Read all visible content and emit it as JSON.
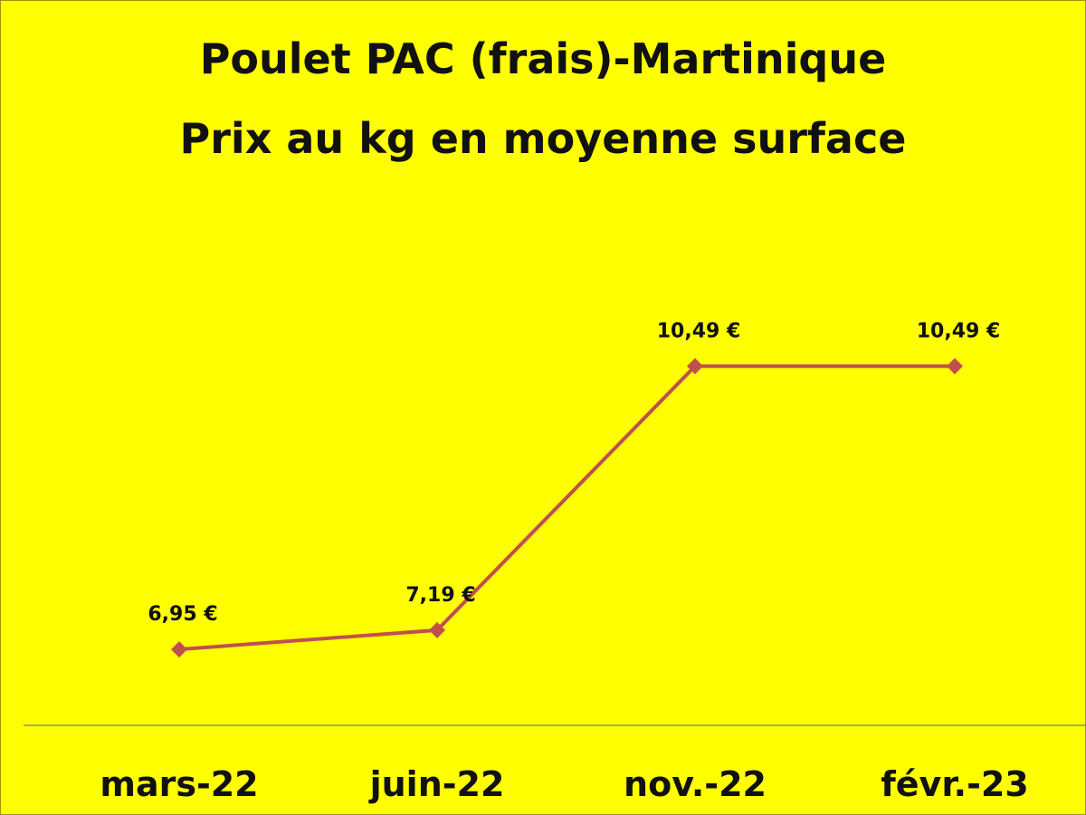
{
  "chart_data": {
    "type": "line",
    "title": "Poulet PAC (frais)-Martinique",
    "subtitle": "Prix au kg en moyenne surface",
    "categories": [
      "mars-22",
      "juin-22",
      "nov.-22",
      "févr.-23"
    ],
    "series": [
      {
        "values": [
          6.95,
          7.19,
          10.49,
          10.49
        ],
        "labels": [
          "6,95 €",
          "7,19 €",
          "10,49 €",
          "10,49 €"
        ]
      }
    ],
    "ylim": [
      6,
      12
    ],
    "grid": false,
    "colors": {
      "background": "#ffff00",
      "line": "#c0504d",
      "axis": "#8c8c8c"
    }
  }
}
